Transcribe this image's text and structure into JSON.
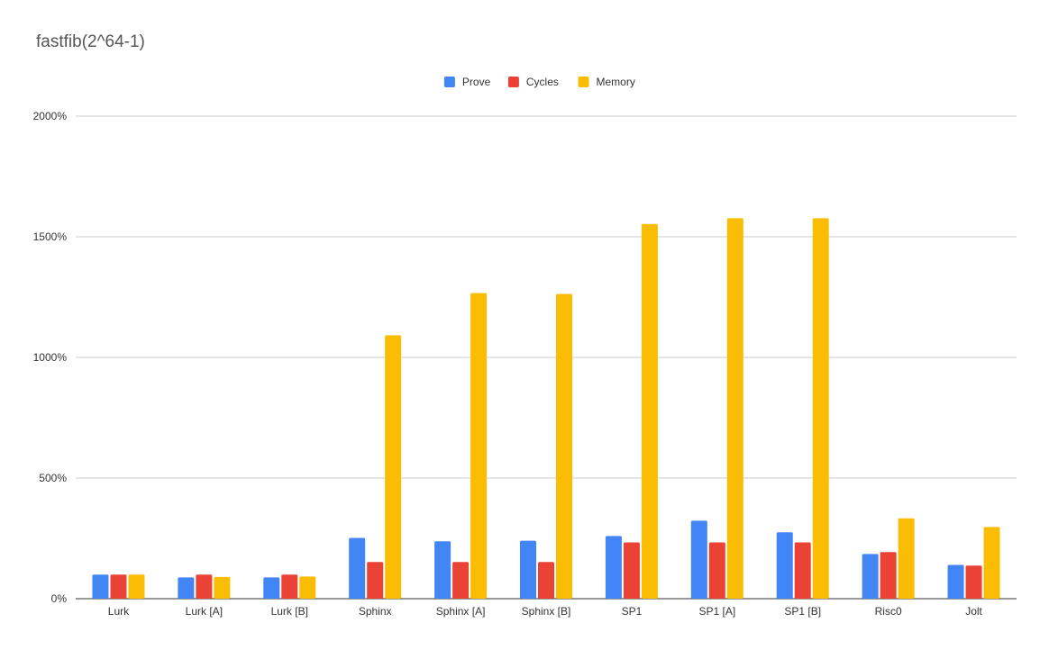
{
  "chart_data": {
    "type": "bar",
    "title": "fastfib(2^64-1)",
    "xlabel": "",
    "ylabel": "",
    "categories": [
      "Lurk",
      "Lurk [A]",
      "Lurk [B]",
      "Sphinx",
      "Sphinx [A]",
      "Sphinx [B]",
      "SP1",
      "SP1 [A]",
      "SP1 [B]",
      "Risc0",
      "Jolt"
    ],
    "series": [
      {
        "name": "Prove",
        "color": "#4285f4",
        "values": [
          100,
          88,
          88,
          252,
          238,
          240,
          260,
          323,
          275,
          185,
          140
        ]
      },
      {
        "name": "Cycles",
        "color": "#ea4335",
        "values": [
          100,
          100,
          100,
          152,
          152,
          152,
          233,
          233,
          233,
          193,
          137
        ]
      },
      {
        "name": "Memory",
        "color": "#fbbc04",
        "values": [
          100,
          90,
          92,
          1092,
          1267,
          1263,
          1553,
          1577,
          1577,
          333,
          297
        ]
      }
    ],
    "ylim": [
      0,
      2000
    ],
    "yticks": [
      0,
      500,
      1000,
      1500,
      2000
    ],
    "ytick_labels": [
      "0%",
      "500%",
      "1000%",
      "1500%",
      "2000%"
    ],
    "legend_position": "top-center",
    "grid": true
  }
}
